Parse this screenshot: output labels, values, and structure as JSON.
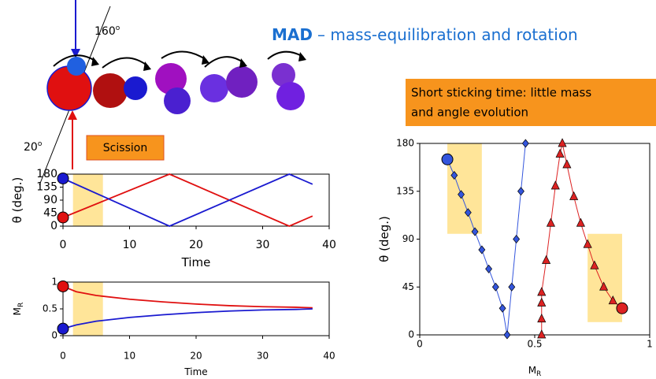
{
  "slide": {
    "title_bold": "MAD",
    "title": "– mass-equilibration and rotation",
    "angle_top": "160",
    "angle_bottom": "20",
    "degree_mark": "o",
    "scission": "Scission",
    "note_line1": "Short sticking time: little mass",
    "note_line2": "and angle evolution"
  },
  "chart_data": [
    {
      "type": "line",
      "ylabel": "θ (deg.)",
      "xlabel": "Time",
      "xlim": [
        0,
        40
      ],
      "xticks": [
        0,
        10,
        20,
        30,
        40
      ],
      "ylim": [
        0,
        180
      ],
      "yticks": [
        0,
        45,
        90,
        135,
        180
      ],
      "shaded_x": [
        1.5,
        6
      ],
      "series": [
        {
          "color": "#e01010",
          "x": [
            0,
            16,
            34,
            37.5
          ],
          "values": [
            30,
            180,
            0,
            35
          ]
        },
        {
          "color": "#1a1ad0",
          "x": [
            0,
            16,
            34,
            37.5
          ],
          "values": [
            165,
            0,
            180,
            145
          ]
        }
      ]
    },
    {
      "type": "line",
      "ylabel": "M",
      "ylabel_sub": "R",
      "xlabel": "Time",
      "xlim": [
        0,
        40
      ],
      "xticks": [
        0,
        10,
        20,
        30,
        40
      ],
      "ylim": [
        0,
        1
      ],
      "yticks": [
        0,
        0.5,
        1
      ],
      "shaded_x": [
        1.5,
        6
      ],
      "series": [
        {
          "color": "#e01010",
          "x": [
            0,
            2,
            5,
            10,
            15,
            20,
            25,
            30,
            35,
            37.5
          ],
          "values": [
            0.92,
            0.82,
            0.75,
            0.68,
            0.63,
            0.59,
            0.56,
            0.54,
            0.53,
            0.52
          ]
        },
        {
          "color": "#1a1ad0",
          "x": [
            0,
            2,
            5,
            10,
            15,
            20,
            25,
            30,
            35,
            37.5
          ],
          "values": [
            0.13,
            0.2,
            0.27,
            0.34,
            0.39,
            0.43,
            0.46,
            0.48,
            0.49,
            0.5
          ]
        }
      ]
    },
    {
      "type": "scatter",
      "ylabel": "θ (deg.)",
      "xlabel": "M",
      "xlabel_sub": "R",
      "xlim": [
        0,
        1
      ],
      "xticks": [
        0,
        0.5,
        1
      ],
      "ylim": [
        0,
        180
      ],
      "yticks": [
        0,
        45,
        90,
        135,
        180
      ],
      "shaded": [
        {
          "x": [
            0.12,
            0.27
          ],
          "y": [
            95,
            180
          ]
        },
        {
          "x": [
            0.73,
            0.88
          ],
          "y": [
            12,
            95
          ]
        }
      ],
      "series": [
        {
          "color": "#3355dd",
          "marker": "diamond",
          "x": [
            0.12,
            0.15,
            0.18,
            0.21,
            0.24,
            0.27,
            0.3,
            0.33,
            0.36,
            0.38,
            0.4,
            0.42,
            0.44,
            0.46
          ],
          "values": [
            165,
            150,
            132,
            115,
            97,
            80,
            62,
            45,
            25,
            0,
            45,
            90,
            135,
            180
          ]
        },
        {
          "color": "#dd2222",
          "marker": "triangle",
          "x": [
            0.88,
            0.84,
            0.8,
            0.76,
            0.73,
            0.7,
            0.67,
            0.64,
            0.62,
            0.61,
            0.59,
            0.57,
            0.55,
            0.53,
            0.53,
            0.53,
            0.53
          ],
          "values": [
            25,
            32,
            45,
            65,
            85,
            105,
            130,
            160,
            180,
            170,
            140,
            105,
            70,
            40,
            30,
            15,
            0
          ]
        }
      ]
    }
  ]
}
